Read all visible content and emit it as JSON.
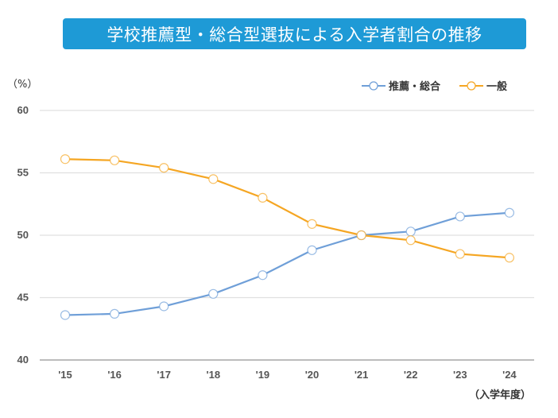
{
  "title": "学校推薦型・総合型選抜による入学者割合の推移",
  "colors": {
    "banner": "#1e9ad6",
    "series_recommend": "#6f9fd8",
    "series_general": "#f5a623",
    "grid": "#e0e0e0",
    "axis": "#a6a6a6"
  },
  "chart_data": {
    "type": "line",
    "title": "学校推薦型・総合型選抜による入学者割合の推移",
    "ylabel": "（%）",
    "xlabel": "（入学年度）",
    "categories": [
      "'15",
      "'16",
      "'17",
      "'18",
      "'19",
      "'20",
      "'21",
      "'22",
      "'23",
      "'24"
    ],
    "ylim": [
      40,
      60
    ],
    "yticks": [
      "40",
      "45",
      "50",
      "55",
      "60"
    ],
    "grid": true,
    "legend_position": "top-right",
    "series": [
      {
        "name": "推薦・総合",
        "values": [
          43.6,
          43.7,
          44.3,
          45.3,
          46.8,
          48.8,
          50.0,
          50.3,
          51.5,
          51.8
        ]
      },
      {
        "name": "一般",
        "values": [
          56.1,
          56.0,
          55.4,
          54.5,
          53.0,
          50.9,
          50.0,
          49.6,
          48.5,
          48.2
        ]
      }
    ]
  }
}
